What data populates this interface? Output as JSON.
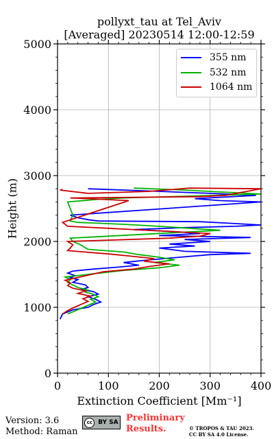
{
  "title_line1": "pollyxt_tau at Tel_Aviv",
  "title_line2": "[Averaged] 20230514 12:00-12:59",
  "footer": {
    "version": "Version: 3.6",
    "method": "Method: Raman",
    "license_badge": "BY SA",
    "prelim_line1": "Preliminary",
    "prelim_line2": "Results.",
    "copyright_line1": "© TROPOS & TAU 2023.",
    "copyright_line2": "CC BY SA 4.0 License."
  },
  "chart_data": {
    "type": "line",
    "xlabel": "Extinction Coefficient [Mm⁻¹]",
    "ylabel": "Height (m)",
    "xlim": [
      0,
      400
    ],
    "ylim": [
      0,
      5000
    ],
    "xticks": [
      0,
      100,
      200,
      300,
      400
    ],
    "yticks": [
      0,
      1000,
      2000,
      3000,
      4000,
      5000
    ],
    "grid": true,
    "legend_position": "top-right",
    "series": [
      {
        "name": "355 nm",
        "color": "#0000ff",
        "x": [
          5,
          10,
          30,
          60,
          70,
          85,
          75,
          60,
          80,
          70,
          45,
          60,
          55,
          30,
          40,
          25,
          35,
          20,
          30,
          70,
          120,
          160,
          130,
          180,
          240,
          300,
          380,
          250,
          200,
          270,
          220,
          300,
          250,
          380,
          200,
          280,
          230,
          150,
          250,
          350,
          400,
          330,
          280,
          80,
          60,
          40,
          25,
          400,
          320,
          270,
          390,
          300,
          200,
          60
        ],
        "y": [
          820,
          900,
          960,
          1000,
          1040,
          1080,
          1120,
          1160,
          1200,
          1240,
          1270,
          1300,
          1340,
          1380,
          1420,
          1450,
          1480,
          1520,
          1550,
          1580,
          1610,
          1640,
          1680,
          1720,
          1760,
          1800,
          1820,
          1850,
          1900,
          1930,
          1960,
          2000,
          2030,
          2060,
          2090,
          2120,
          2150,
          2180,
          2210,
          2230,
          2250,
          2280,
          2300,
          2310,
          2330,
          2360,
          2400,
          2600,
          2620,
          2650,
          2700,
          2730,
          2760,
          2800
        ]
      },
      {
        "name": "532 nm",
        "color": "#00b200",
        "x": [
          20,
          30,
          45,
          60,
          75,
          65,
          80,
          70,
          55,
          60,
          40,
          30,
          20,
          25,
          15,
          130,
          200,
          240,
          190,
          230,
          200,
          160,
          130,
          60,
          45,
          30,
          25,
          320,
          260,
          200,
          130,
          40,
          25,
          30,
          20,
          80,
          130,
          400,
          250,
          150
        ],
        "y": [
          900,
          930,
          980,
          1030,
          1080,
          1120,
          1160,
          1200,
          1230,
          1260,
          1300,
          1340,
          1380,
          1420,
          1460,
          1560,
          1600,
          1640,
          1680,
          1720,
          1760,
          1800,
          1840,
          1880,
          1950,
          2000,
          2050,
          2170,
          2200,
          2230,
          2260,
          2290,
          2310,
          2400,
          2600,
          2640,
          2660,
          2720,
          2780,
          2810
        ]
      },
      {
        "name": "1064 nm",
        "color": "#cc0000",
        "x": [
          10,
          20,
          30,
          45,
          60,
          50,
          65,
          40,
          55,
          30,
          20,
          25,
          15,
          90,
          150,
          180,
          220,
          170,
          190,
          140,
          100,
          20,
          25,
          30,
          20,
          220,
          280,
          300,
          200,
          100,
          20,
          15,
          10,
          140,
          60,
          25,
          280,
          330,
          400,
          260,
          180,
          60,
          5,
          10
        ],
        "y": [
          900,
          950,
          990,
          1040,
          1090,
          1130,
          1170,
          1210,
          1250,
          1290,
          1330,
          1370,
          1410,
          1540,
          1580,
          1620,
          1660,
          1700,
          1740,
          1780,
          1810,
          1860,
          1900,
          1950,
          2000,
          2050,
          2080,
          2120,
          2160,
          2200,
          2230,
          2260,
          2290,
          2620,
          2650,
          2660,
          2680,
          2700,
          2800,
          2810,
          2760,
          2730,
          2780,
          2790
        ]
      }
    ]
  }
}
